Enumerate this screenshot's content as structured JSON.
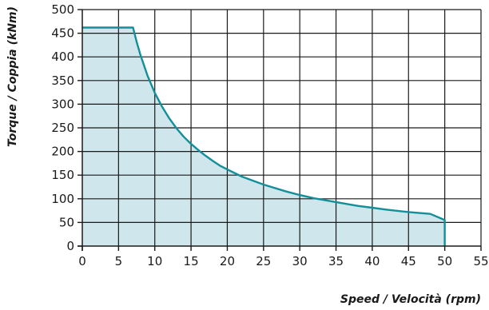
{
  "chart_data": {
    "type": "area",
    "title": "",
    "xlabel": "Speed / Velocità (rpm)",
    "ylabel": "Torque / Coppia (kNm)",
    "xlim": [
      0,
      55
    ],
    "ylim": [
      0,
      500
    ],
    "x_ticks": [
      "0",
      "5",
      "10",
      "15",
      "20",
      "25",
      "30",
      "35",
      "40",
      "45",
      "50",
      "55"
    ],
    "y_ticks": [
      "0",
      "50",
      "100",
      "150",
      "200",
      "250",
      "300",
      "350",
      "400",
      "450",
      "500"
    ],
    "grid": true,
    "legend": "none",
    "series": [
      {
        "x": [
          0,
          7,
          7.5,
          8,
          9,
          10,
          11,
          12,
          13,
          14,
          15,
          16,
          17,
          18,
          19,
          20,
          22,
          25,
          28,
          30,
          32,
          35,
          38,
          40,
          42,
          45,
          48,
          50,
          50
        ],
        "y": [
          462,
          462,
          432,
          405,
          360,
          324,
          295,
          270,
          249,
          231,
          216,
          203,
          191,
          180,
          170,
          162,
          147,
          130,
          116,
          108,
          101,
          93,
          85,
          81,
          77,
          72,
          68,
          55,
          0
        ]
      }
    ],
    "colors": {
      "line": "#138f99",
      "fill": "#cfe6ec",
      "grid": "#1a1a1a",
      "text": "#1a1a1a"
    }
  }
}
